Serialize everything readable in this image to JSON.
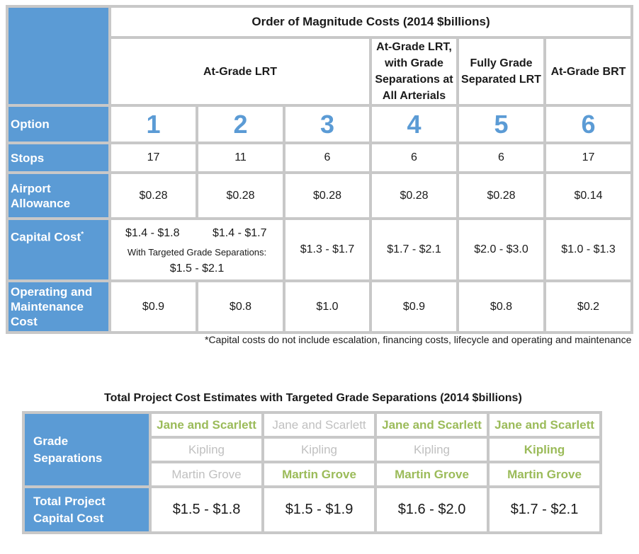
{
  "top_table": {
    "title": "Order of Magnitude Costs (2014 $billions)",
    "headers": {
      "at_grade_lrt": "At-Grade LRT",
      "with_grade_separations": [
        "At-Grade LRT,",
        "with Grade",
        "Separations at",
        "All Arterials"
      ],
      "fully_grade_separated": [
        "Fully Grade",
        "Separated LRT"
      ],
      "at_grade_brt": "At-Grade BRT"
    },
    "row_labels": {
      "option": "Option",
      "stops": "Stops",
      "airport": [
        "Airport",
        "Allowance"
      ],
      "capital": "Capital Cost",
      "capital_marker": "*",
      "om": [
        "Operating and",
        "Maintenance",
        "Cost"
      ]
    },
    "options": [
      "1",
      "2",
      "3",
      "4",
      "5",
      "6"
    ],
    "stops": [
      "17",
      "11",
      "6",
      "6",
      "6",
      "17"
    ],
    "airport_allowance": [
      "$0.28",
      "$0.28",
      "$0.28",
      "$0.28",
      "$0.28",
      "$0.14"
    ],
    "capital_cost": {
      "opt1": "$1.4 - $1.8",
      "opt2": "$1.4 - $1.7",
      "targeted_note": "With Targeted Grade Separations:",
      "targeted_value": "$1.5 - $2.1",
      "opt3": "$1.3 - $1.7",
      "opt4": "$1.7 - $2.1",
      "opt5": "$2.0 - $3.0",
      "opt6": "$1.0 - $1.3"
    },
    "om_cost": [
      "$0.9",
      "$0.8",
      "$1.0",
      "$0.9",
      "$0.8",
      "$0.2"
    ]
  },
  "footnote": "*Capital costs do not include escalation, financing costs, lifecycle and operating and maintenance",
  "bottom_table": {
    "title": "Total Project Cost Estimates with Targeted Grade Separations (2014 $billions)",
    "row_labels": {
      "grade_separations": [
        "Grade",
        "Separations"
      ],
      "total": [
        "Total Project",
        "Capital Cost"
      ]
    },
    "separation_rows": [
      {
        "label": "Jane and Scarlett",
        "included": [
          true,
          false,
          true,
          true
        ]
      },
      {
        "label": "Kipling",
        "included": [
          false,
          false,
          false,
          true
        ]
      },
      {
        "label": "Martin Grove",
        "included": [
          false,
          true,
          true,
          true
        ]
      }
    ],
    "totals": [
      "$1.5 - $1.8",
      "$1.5 - $1.9",
      "$1.6 - $2.0",
      "$1.7 - $2.1"
    ],
    "colors": {
      "included": "#9bbb59",
      "excluded": "#c0c0c0",
      "header_blue": "#5b9bd5"
    }
  }
}
